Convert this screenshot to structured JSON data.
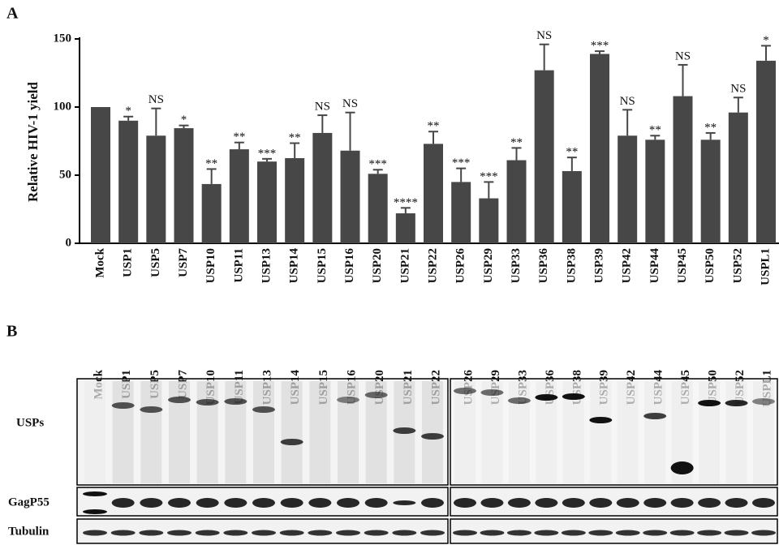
{
  "figure": {
    "panel_a_label": "A",
    "panel_b_label": "B"
  },
  "chart_data": {
    "type": "bar",
    "y_label": "Relative HIV-1 yield",
    "categories": [
      "Mock",
      "USP1",
      "USP5",
      "USP7",
      "USP10",
      "USP11",
      "USP13",
      "USP14",
      "USP15",
      "USP16",
      "USP20",
      "USP21",
      "USP22",
      "USP26",
      "USP29",
      "USP33",
      "USP36",
      "USP38",
      "USP39",
      "USP42",
      "USP44",
      "USP45",
      "USP50",
      "USP52",
      "USPL1"
    ],
    "series": [
      {
        "color": "#474747",
        "values": [
          100,
          90,
          79,
          84.5,
          43.5,
          69,
          60,
          62.5,
          81,
          68,
          51,
          22,
          73,
          45,
          33,
          61,
          127,
          53,
          139,
          79,
          76,
          108,
          76,
          96,
          134
        ],
        "errors": [
          0,
          3,
          20,
          2,
          11,
          5,
          2,
          11,
          13,
          28,
          3,
          4,
          9,
          10,
          12,
          9,
          19,
          10,
          2,
          19,
          3,
          23,
          5,
          11,
          11
        ],
        "annotations": [
          null,
          "*",
          "NS",
          "*",
          "**",
          "**",
          "***",
          "**",
          "NS",
          "NS",
          "***",
          "****",
          "**",
          "***",
          "***",
          "**",
          "NS",
          "**",
          "***",
          "NS",
          "**",
          "NS",
          "**",
          "NS",
          "*"
        ]
      }
    ],
    "ylim": [
      0,
      150
    ],
    "yticks": [
      0,
      50,
      100,
      150
    ],
    "grid": false
  },
  "blot": {
    "left_lanes": [
      "Mock",
      "USP1",
      "USP5",
      "USP7",
      "USP10",
      "USP11",
      "USP13",
      "USP14",
      "USP15",
      "USP16",
      "USP20",
      "USP21",
      "USP22"
    ],
    "right_lanes": [
      "USP26",
      "USP29",
      "USP33",
      "USP36",
      "USP38",
      "USP39",
      "USP42",
      "USP44",
      "USP45",
      "USP50",
      "USP52",
      "USPL1"
    ],
    "rows": [
      "USPs",
      "GagP55",
      "Tubulin"
    ]
  }
}
